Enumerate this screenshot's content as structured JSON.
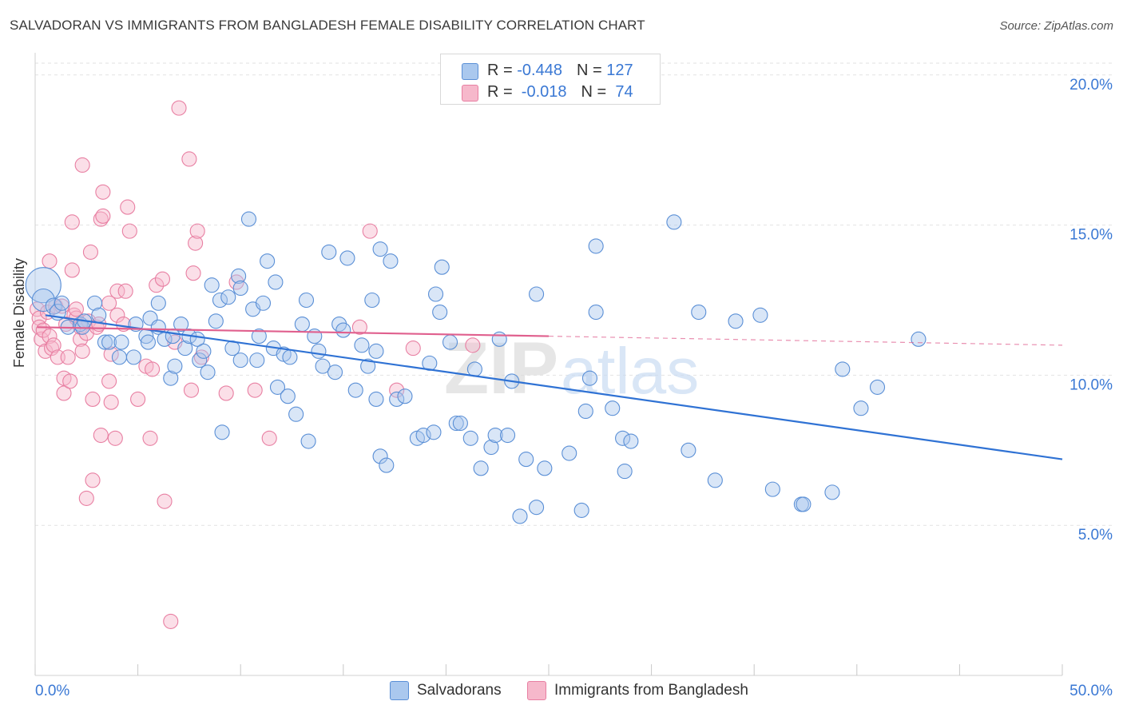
{
  "header": {
    "title": "SALVADORAN VS IMMIGRANTS FROM BANGLADESH FEMALE DISABILITY CORRELATION CHART",
    "source": "Source: ZipAtlas.com"
  },
  "legend_top": {
    "rows": [
      {
        "r_label": "R = ",
        "r_value": "-0.448",
        "n_label": "N = ",
        "n_value": "127",
        "color": "#aac8ee"
      },
      {
        "r_label": "R = ",
        "r_value": " -0.018",
        "n_label": "N = ",
        "n_value": " 74",
        "color": "#f6b8cb"
      }
    ]
  },
  "legend_bottom": {
    "items": [
      {
        "label": "Salvadorans",
        "color": "#aac8ee"
      },
      {
        "label": "Immigrants from Bangladesh",
        "color": "#f6b8cb"
      }
    ]
  },
  "watermark": {
    "zip": "ZIP",
    "atlas": "atlas"
  },
  "chart_data": {
    "type": "scatter",
    "title": "SALVADORAN VS IMMIGRANTS FROM BANGLADESH FEMALE DISABILITY CORRELATION CHART",
    "xlabel": "",
    "ylabel": "Female Disability",
    "xlim": [
      0,
      50
    ],
    "ylim": [
      0,
      20.9
    ],
    "x_tick_labels": [
      "0.0%",
      "50.0%"
    ],
    "y_ticks": [
      5,
      10,
      15,
      20
    ],
    "y_tick_labels": [
      "5.0%",
      "10.0%",
      "15.0%",
      "20.0%"
    ],
    "grid": true,
    "colors": {
      "blue_fill": "#aac8ee",
      "blue_stroke": "#5a8fd6",
      "blue_line": "#2f72d4",
      "pink_fill": "#f6b8cb",
      "pink_stroke": "#e87fa2",
      "pink_line": "#e0608e",
      "axis_label": "#3a78d4"
    },
    "series": [
      {
        "name": "Salvadorans",
        "R": -0.448,
        "N": 127,
        "trend": {
          "x0": 0.5,
          "y0": 12.0,
          "x1": 50.0,
          "y1": 7.2,
          "dashed_from": null
        },
        "points": [
          [
            0.4,
            13.0,
            22
          ],
          [
            0.4,
            12.5,
            14
          ],
          [
            0.9,
            12.3,
            10
          ],
          [
            1.1,
            12.1,
            10
          ],
          [
            1.3,
            12.4,
            9
          ],
          [
            1.6,
            11.6,
            9
          ],
          [
            2.2,
            11.7,
            9
          ],
          [
            2.3,
            11.6,
            9
          ],
          [
            2.4,
            11.8,
            9
          ],
          [
            2.9,
            12.4,
            9
          ],
          [
            3.1,
            12.0,
            9
          ],
          [
            3.4,
            11.1,
            9
          ],
          [
            3.6,
            11.1,
            9
          ],
          [
            4.1,
            10.6,
            9
          ],
          [
            4.2,
            11.1,
            9
          ],
          [
            4.8,
            10.6,
            9
          ],
          [
            4.9,
            11.7,
            9
          ],
          [
            5.4,
            11.3,
            9
          ],
          [
            5.5,
            11.1,
            9
          ],
          [
            5.6,
            11.9,
            9
          ],
          [
            6.0,
            12.4,
            9
          ],
          [
            6.0,
            11.6,
            9
          ],
          [
            6.3,
            11.2,
            9
          ],
          [
            6.7,
            11.3,
            9
          ],
          [
            6.6,
            9.9,
            9
          ],
          [
            6.8,
            10.3,
            9
          ],
          [
            7.1,
            11.7,
            9
          ],
          [
            7.3,
            10.9,
            9
          ],
          [
            7.5,
            11.3,
            9
          ],
          [
            7.9,
            11.2,
            9
          ],
          [
            8.0,
            10.5,
            9
          ],
          [
            8.2,
            10.8,
            9
          ],
          [
            8.4,
            10.1,
            9
          ],
          [
            8.6,
            13.0,
            9
          ],
          [
            8.8,
            11.8,
            9
          ],
          [
            9.0,
            12.5,
            9
          ],
          [
            9.1,
            8.1,
            9
          ],
          [
            9.4,
            12.6,
            9
          ],
          [
            9.6,
            10.9,
            9
          ],
          [
            9.9,
            13.3,
            9
          ],
          [
            10.0,
            12.9,
            9
          ],
          [
            10.0,
            10.5,
            9
          ],
          [
            10.4,
            15.2,
            9
          ],
          [
            10.6,
            12.2,
            9
          ],
          [
            10.8,
            10.5,
            9
          ],
          [
            10.9,
            11.3,
            9
          ],
          [
            11.1,
            12.4,
            9
          ],
          [
            11.3,
            13.8,
            9
          ],
          [
            11.6,
            10.9,
            9
          ],
          [
            11.7,
            13.1,
            9
          ],
          [
            11.8,
            9.6,
            9
          ],
          [
            12.1,
            10.7,
            9
          ],
          [
            12.4,
            10.6,
            9
          ],
          [
            12.3,
            9.3,
            9
          ],
          [
            12.7,
            8.7,
            9
          ],
          [
            13.0,
            11.7,
            9
          ],
          [
            13.2,
            12.5,
            9
          ],
          [
            13.3,
            7.8,
            9
          ],
          [
            13.6,
            11.3,
            9
          ],
          [
            13.8,
            10.8,
            9
          ],
          [
            14.0,
            10.3,
            9
          ],
          [
            14.3,
            14.1,
            9
          ],
          [
            14.6,
            10.1,
            9
          ],
          [
            14.8,
            11.7,
            9
          ],
          [
            15.0,
            11.5,
            9
          ],
          [
            15.2,
            13.9,
            9
          ],
          [
            15.6,
            9.5,
            9
          ],
          [
            15.9,
            11.0,
            9
          ],
          [
            16.2,
            10.3,
            9
          ],
          [
            16.4,
            12.5,
            9
          ],
          [
            16.6,
            10.8,
            9
          ],
          [
            16.6,
            9.2,
            9
          ],
          [
            16.8,
            14.2,
            9
          ],
          [
            16.8,
            7.3,
            9
          ],
          [
            17.1,
            7.0,
            9
          ],
          [
            17.3,
            13.8,
            9
          ],
          [
            17.6,
            9.2,
            9
          ],
          [
            18.0,
            9.3,
            9
          ],
          [
            18.6,
            7.9,
            9
          ],
          [
            18.9,
            8.0,
            9
          ],
          [
            19.2,
            10.4,
            9
          ],
          [
            19.4,
            8.1,
            9
          ],
          [
            19.5,
            12.7,
            9
          ],
          [
            19.7,
            12.1,
            9
          ],
          [
            19.8,
            13.6,
            9
          ],
          [
            20.2,
            11.1,
            9
          ],
          [
            20.5,
            8.4,
            9
          ],
          [
            20.7,
            8.4,
            9
          ],
          [
            21.2,
            7.9,
            9
          ],
          [
            21.4,
            10.2,
            9
          ],
          [
            21.7,
            6.9,
            9
          ],
          [
            22.2,
            7.6,
            9
          ],
          [
            22.4,
            8.0,
            9
          ],
          [
            22.6,
            11.2,
            9
          ],
          [
            23.0,
            8.0,
            9
          ],
          [
            23.2,
            9.8,
            9
          ],
          [
            23.6,
            5.3,
            9
          ],
          [
            23.9,
            7.2,
            9
          ],
          [
            24.4,
            12.7,
            9
          ],
          [
            24.4,
            5.6,
            9
          ],
          [
            24.8,
            6.9,
            9
          ],
          [
            26.0,
            7.4,
            9
          ],
          [
            26.6,
            5.5,
            9
          ],
          [
            26.8,
            8.8,
            9
          ],
          [
            27.0,
            9.9,
            9
          ],
          [
            27.3,
            14.3,
            9
          ],
          [
            27.3,
            12.1,
            9
          ],
          [
            28.1,
            8.9,
            9
          ],
          [
            28.6,
            7.9,
            9
          ],
          [
            28.7,
            6.8,
            9
          ],
          [
            29.0,
            7.8,
            9
          ],
          [
            31.1,
            15.1,
            9
          ],
          [
            31.8,
            7.5,
            9
          ],
          [
            32.3,
            12.1,
            9
          ],
          [
            33.1,
            6.5,
            9
          ],
          [
            34.1,
            11.8,
            9
          ],
          [
            35.3,
            12.0,
            9
          ],
          [
            35.9,
            6.2,
            9
          ],
          [
            37.3,
            5.7,
            9
          ],
          [
            37.4,
            5.7,
            9
          ],
          [
            38.8,
            6.1,
            9
          ],
          [
            39.3,
            10.2,
            9
          ],
          [
            40.2,
            8.9,
            9
          ],
          [
            41.0,
            9.6,
            9
          ],
          [
            43.0,
            11.2,
            9
          ]
        ]
      },
      {
        "name": "Immigrants from Bangladesh",
        "R": -0.018,
        "N": 74,
        "trend": {
          "x0": 0.1,
          "y0": 11.6,
          "x1": 25.0,
          "y1": 11.3,
          "dashed_from": 25.0,
          "x2": 50.0,
          "y2": 11.0
        },
        "points": [
          [
            0.1,
            12.2,
            9
          ],
          [
            0.2,
            11.9,
            9
          ],
          [
            0.2,
            11.6,
            9
          ],
          [
            0.3,
            11.2,
            9
          ],
          [
            0.4,
            11.5,
            9
          ],
          [
            0.5,
            10.8,
            9
          ],
          [
            0.6,
            12.1,
            9
          ],
          [
            0.7,
            11.3,
            9
          ],
          [
            0.7,
            13.8,
            9
          ],
          [
            0.8,
            10.9,
            9
          ],
          [
            0.9,
            11.0,
            9
          ],
          [
            1.0,
            12.3,
            9
          ],
          [
            1.1,
            10.6,
            9
          ],
          [
            1.3,
            12.3,
            9
          ],
          [
            1.4,
            9.4,
            9
          ],
          [
            1.4,
            9.9,
            9
          ],
          [
            1.5,
            11.7,
            9
          ],
          [
            1.6,
            10.6,
            9
          ],
          [
            1.7,
            9.8,
            9
          ],
          [
            1.8,
            13.5,
            9
          ],
          [
            1.8,
            15.1,
            9
          ],
          [
            1.9,
            12.0,
            9
          ],
          [
            2.0,
            11.9,
            9
          ],
          [
            2.0,
            12.2,
            9
          ],
          [
            2.2,
            11.2,
            9
          ],
          [
            2.2,
            11.6,
            9
          ],
          [
            2.3,
            17.0,
            9
          ],
          [
            2.3,
            10.8,
            9
          ],
          [
            2.5,
            11.4,
            9
          ],
          [
            2.5,
            5.9,
            9
          ],
          [
            2.6,
            11.8,
            9
          ],
          [
            2.7,
            14.1,
            9
          ],
          [
            2.8,
            9.2,
            9
          ],
          [
            2.8,
            6.5,
            9
          ],
          [
            3.0,
            11.6,
            9
          ],
          [
            3.1,
            11.7,
            9
          ],
          [
            3.2,
            15.2,
            9
          ],
          [
            3.2,
            8.0,
            9
          ],
          [
            3.3,
            16.1,
            9
          ],
          [
            3.3,
            15.3,
            9
          ],
          [
            3.6,
            12.4,
            9
          ],
          [
            3.6,
            9.8,
            9
          ],
          [
            3.7,
            10.7,
            9
          ],
          [
            3.7,
            9.1,
            9
          ],
          [
            3.9,
            7.9,
            9
          ],
          [
            4.0,
            12.8,
            9
          ],
          [
            4.0,
            12.0,
            9
          ],
          [
            4.3,
            11.7,
            9
          ],
          [
            4.4,
            12.8,
            9
          ],
          [
            4.5,
            15.6,
            9
          ],
          [
            4.6,
            14.8,
            9
          ],
          [
            5.0,
            9.2,
            9
          ],
          [
            5.4,
            10.3,
            9
          ],
          [
            5.6,
            7.9,
            9
          ],
          [
            5.7,
            10.2,
            9
          ],
          [
            5.9,
            13.0,
            9
          ],
          [
            6.2,
            13.2,
            9
          ],
          [
            6.3,
            5.8,
            9
          ],
          [
            6.6,
            1.8,
            9
          ],
          [
            6.8,
            11.1,
            9
          ],
          [
            7.0,
            18.9,
            9
          ],
          [
            7.5,
            17.2,
            9
          ],
          [
            7.6,
            9.5,
            9
          ],
          [
            7.7,
            13.4,
            9
          ],
          [
            7.8,
            14.4,
            9
          ],
          [
            7.9,
            14.8,
            9
          ],
          [
            8.1,
            10.6,
            9
          ],
          [
            9.3,
            9.4,
            9
          ],
          [
            9.8,
            13.1,
            9
          ],
          [
            10.7,
            9.5,
            9
          ],
          [
            11.4,
            7.9,
            9
          ],
          [
            15.8,
            11.6,
            9
          ],
          [
            16.3,
            14.8,
            9
          ],
          [
            17.6,
            9.5,
            9
          ],
          [
            18.4,
            10.9,
            9
          ],
          [
            21.3,
            11.0,
            9
          ]
        ]
      }
    ]
  }
}
